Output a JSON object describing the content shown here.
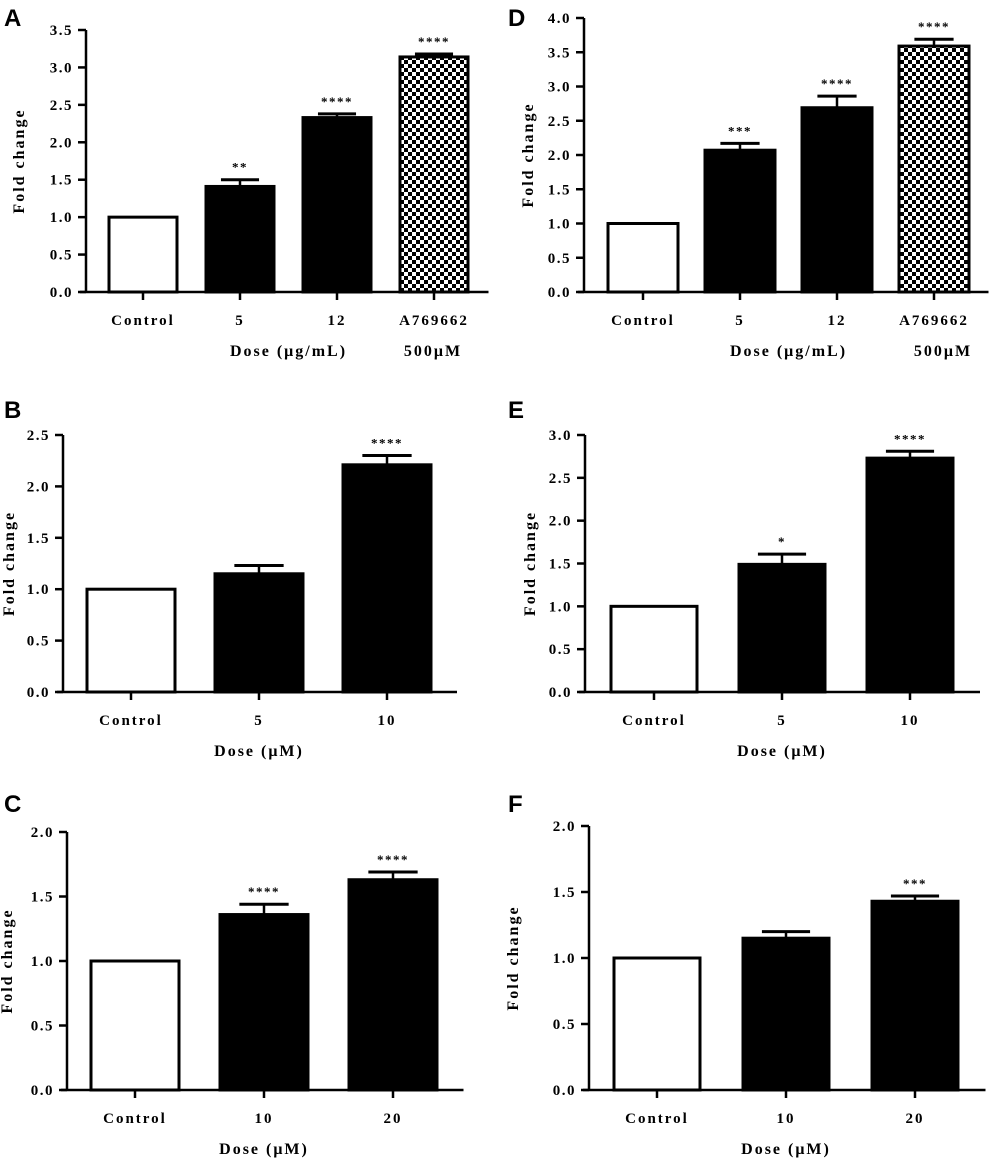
{
  "chart_data": [
    {
      "panel": "A",
      "type": "bar",
      "categories": [
        "Control",
        "5",
        "12",
        "A769662"
      ],
      "values": [
        1.0,
        1.41,
        2.33,
        3.14
      ],
      "errors": [
        0,
        0.09,
        0.05,
        0.04
      ],
      "significance": [
        "",
        "**",
        "****",
        "****"
      ],
      "patterns": [
        "white",
        "black",
        "black",
        "checker"
      ],
      "xlabel": "Dose (μg/mL)",
      "xlabel_extra": "500μM",
      "ylabel": "Fold change",
      "ylim": [
        0,
        3.5
      ],
      "yticks": [
        "0.0",
        "0.5",
        "1.0",
        "1.5",
        "2.0",
        "2.5",
        "3.0",
        "3.5"
      ]
    },
    {
      "panel": "D",
      "type": "bar",
      "categories": [
        "Control",
        "5",
        "12",
        "A769662"
      ],
      "values": [
        1.0,
        2.07,
        2.69,
        3.59
      ],
      "errors": [
        0,
        0.1,
        0.17,
        0.1
      ],
      "significance": [
        "",
        "***",
        "****",
        "****"
      ],
      "patterns": [
        "white",
        "black",
        "black",
        "checker"
      ],
      "xlabel": "Dose (μg/mL)",
      "xlabel_extra": "500μM",
      "ylabel": "Fold change",
      "ylim": [
        0,
        4.0
      ],
      "yticks": [
        "0.0",
        "0.5",
        "1.0",
        "1.5",
        "2.0",
        "2.5",
        "3.0",
        "3.5",
        "4.0"
      ]
    },
    {
      "panel": "B",
      "type": "bar",
      "categories": [
        "Control",
        "5",
        "10"
      ],
      "values": [
        1.0,
        1.15,
        2.21
      ],
      "errors": [
        0,
        0.08,
        0.09
      ],
      "significance": [
        "",
        "",
        "****"
      ],
      "patterns": [
        "white",
        "black",
        "black"
      ],
      "xlabel": "Dose (μM)",
      "xlabel_extra": "",
      "ylabel": "Fold change",
      "ylim": [
        0,
        2.5
      ],
      "yticks": [
        "0.0",
        "0.5",
        "1.0",
        "1.5",
        "2.0",
        "2.5"
      ]
    },
    {
      "panel": "E",
      "type": "bar",
      "categories": [
        "Control",
        "5",
        "10"
      ],
      "values": [
        1.0,
        1.49,
        2.73
      ],
      "errors": [
        0,
        0.12,
        0.08
      ],
      "significance": [
        "",
        "*",
        "****"
      ],
      "patterns": [
        "white",
        "black",
        "black"
      ],
      "xlabel": "Dose (μM)",
      "xlabel_extra": "",
      "ylabel": "Fold change",
      "ylim": [
        0,
        3.0
      ],
      "yticks": [
        "0.0",
        "0.5",
        "1.0",
        "1.5",
        "2.0",
        "2.5",
        "3.0"
      ]
    },
    {
      "panel": "C",
      "type": "bar",
      "categories": [
        "Control",
        "10",
        "20"
      ],
      "values": [
        1.0,
        1.36,
        1.63
      ],
      "errors": [
        0,
        0.08,
        0.06
      ],
      "significance": [
        "",
        "****",
        "****"
      ],
      "patterns": [
        "white",
        "black",
        "black"
      ],
      "xlabel": "Dose (μM)",
      "xlabel_extra": "",
      "ylabel": "Fold change",
      "ylim": [
        0,
        2.0
      ],
      "yticks": [
        "0.0",
        "0.5",
        "1.0",
        "1.5",
        "2.0"
      ]
    },
    {
      "panel": "F",
      "type": "bar",
      "categories": [
        "Control",
        "10",
        "20"
      ],
      "values": [
        1.0,
        1.15,
        1.43
      ],
      "errors": [
        0,
        0.05,
        0.04
      ],
      "significance": [
        "",
        "",
        "***"
      ],
      "patterns": [
        "white",
        "black",
        "black"
      ],
      "xlabel": "Dose (μM)",
      "xlabel_extra": "",
      "ylabel": "Fold change",
      "ylim": [
        0,
        2.0
      ],
      "yticks": [
        "0.0",
        "0.5",
        "1.0",
        "1.5",
        "2.0"
      ]
    }
  ],
  "colors": {
    "bar_fill": "#000000",
    "control_fill": "#ffffff",
    "axis": "#000000"
  }
}
